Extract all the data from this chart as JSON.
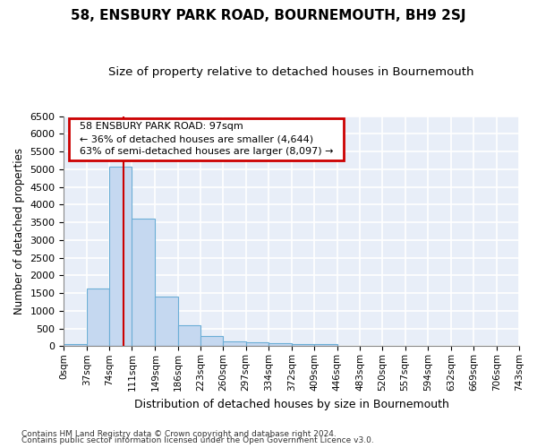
{
  "title": "58, ENSBURY PARK ROAD, BOURNEMOUTH, BH9 2SJ",
  "subtitle": "Size of property relative to detached houses in Bournemouth",
  "xlabel": "Distribution of detached houses by size in Bournemouth",
  "ylabel": "Number of detached properties",
  "footnote1": "Contains HM Land Registry data © Crown copyright and database right 2024.",
  "footnote2": "Contains public sector information licensed under the Open Government Licence v3.0.",
  "annotation_title": "58 ENSBURY PARK ROAD: 97sqm",
  "annotation_line1": "← 36% of detached houses are smaller (4,644)",
  "annotation_line2": "63% of semi-detached houses are larger (8,097) →",
  "property_size": 97,
  "bin_edges": [
    0,
    37,
    74,
    111,
    149,
    186,
    223,
    260,
    297,
    334,
    372,
    409,
    446,
    483,
    520,
    557,
    594,
    632,
    669,
    706,
    743
  ],
  "bar_heights": [
    60,
    1630,
    5080,
    3600,
    1410,
    590,
    290,
    130,
    100,
    75,
    50,
    70,
    0,
    0,
    0,
    0,
    0,
    0,
    0,
    0
  ],
  "bar_color": "#c5d8f0",
  "bar_edge_color": "#6baed6",
  "vline_color": "#cc0000",
  "vline_x": 97,
  "ylim": [
    0,
    6500
  ],
  "xlim": [
    0,
    743
  ],
  "background_color": "#e8eef8",
  "grid_color": "#ffffff",
  "title_fontsize": 11,
  "subtitle_fontsize": 9.5,
  "ylabel_fontsize": 8.5,
  "xlabel_fontsize": 9,
  "annotation_box_color": "#cc0000",
  "yticks": [
    0,
    500,
    1000,
    1500,
    2000,
    2500,
    3000,
    3500,
    4000,
    4500,
    5000,
    5500,
    6000,
    6500
  ]
}
